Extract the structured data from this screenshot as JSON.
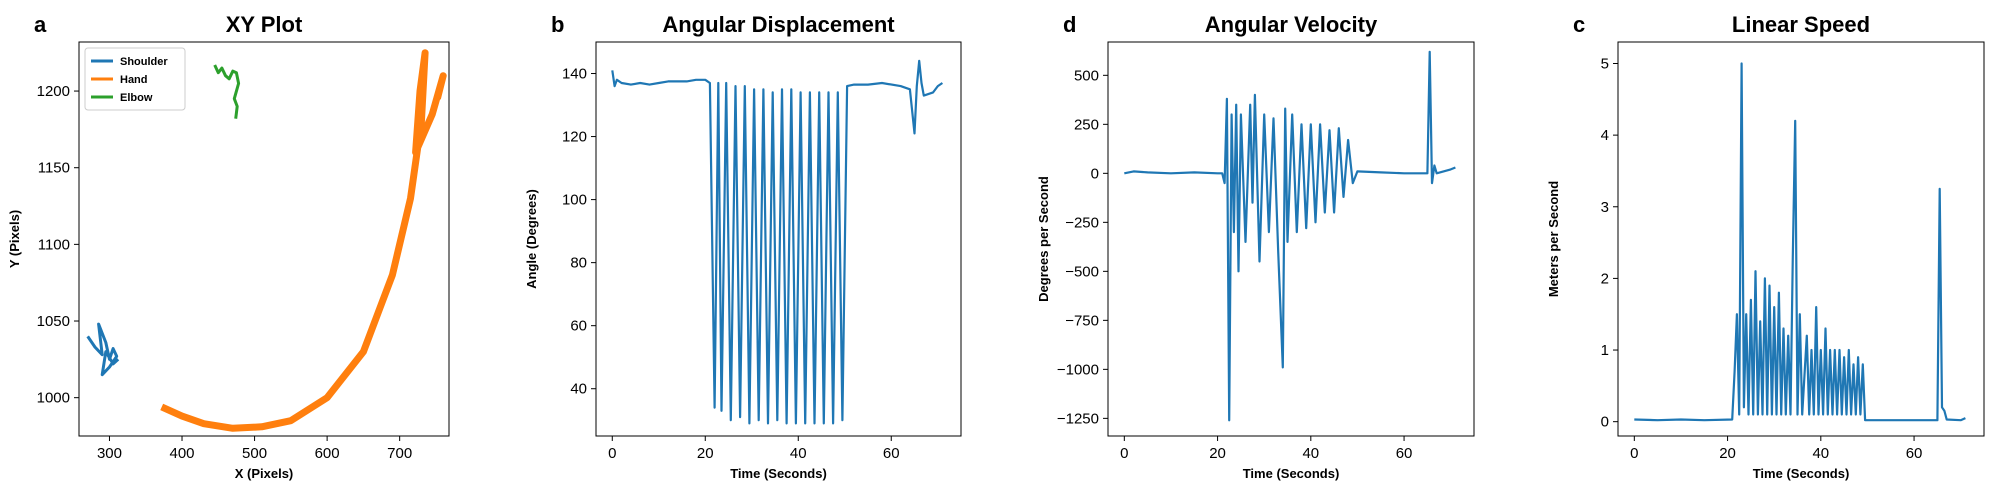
{
  "chart_data": [
    {
      "type": "xy",
      "panel_label": "a",
      "title": "XY Plot",
      "xlabel": "X (Pixels)",
      "ylabel": "Y (Pixels)",
      "xlim": [
        258,
        768
      ],
      "xticks": [
        300,
        400,
        500,
        600,
        700
      ],
      "ylim": [
        975,
        1232
      ],
      "yticks": [
        1000,
        1050,
        1100,
        1150,
        1200
      ],
      "legend": "upper left",
      "series": [
        {
          "name": "Shoulder",
          "color": "#1f77b4",
          "x": [
            270,
            280,
            290,
            285,
            295,
            300,
            305,
            310,
            300,
            290,
            295,
            305,
            312
          ],
          "y": [
            1040,
            1033,
            1028,
            1048,
            1036,
            1025,
            1032,
            1027,
            1020,
            1015,
            1030,
            1022,
            1025
          ]
        },
        {
          "name": "Hand",
          "color": "#ff7f0e",
          "x": [
            372,
            400,
            430,
            470,
            510,
            550,
            600,
            650,
            690,
            715,
            730,
            735,
            728,
            722,
            745,
            760,
            752
          ],
          "y": [
            994,
            988,
            983,
            980,
            981,
            985,
            1000,
            1030,
            1080,
            1130,
            1180,
            1225,
            1200,
            1160,
            1185,
            1210,
            1195
          ]
        },
        {
          "name": "Elbow",
          "color": "#2ca02c",
          "x": [
            445,
            450,
            455,
            460,
            465,
            470,
            475,
            478,
            472,
            476,
            474
          ],
          "y": [
            1217,
            1212,
            1215,
            1210,
            1208,
            1213,
            1212,
            1205,
            1195,
            1190,
            1182
          ]
        }
      ]
    },
    {
      "type": "line",
      "panel_label": "b",
      "title": "Angular Displacement",
      "xlabel": "Time (Seconds)",
      "ylabel": "Angle (Degrees)",
      "xlim": [
        -3.5,
        75
      ],
      "xticks": [
        0,
        20,
        40,
        60
      ],
      "ylim": [
        25,
        150
      ],
      "yticks": [
        40,
        60,
        80,
        100,
        120,
        140
      ],
      "color": "#1f77b4",
      "x": [
        0,
        0.5,
        1,
        2,
        4,
        6,
        8,
        10,
        12,
        14,
        16,
        18,
        20,
        21,
        22,
        22.8,
        23.5,
        24.5,
        25.5,
        26.5,
        27.5,
        28.5,
        29.5,
        30.5,
        31.5,
        32.5,
        33.5,
        34.5,
        35.5,
        36.5,
        37.5,
        38.5,
        39.5,
        40.5,
        41.5,
        42.5,
        43.5,
        44.5,
        45.5,
        46.5,
        47.5,
        48.5,
        49.5,
        50.5,
        52,
        55,
        58,
        62,
        64,
        65,
        65.5,
        66,
        66.5,
        67,
        69,
        70,
        71
      ],
      "values": [
        141,
        136,
        138,
        137,
        136.5,
        137,
        136.5,
        137,
        137.5,
        137.5,
        137.5,
        138,
        138,
        137,
        34,
        137,
        33,
        137,
        30,
        136,
        31,
        136,
        29,
        135,
        30,
        135,
        29,
        134,
        30,
        135,
        29,
        135,
        29,
        134,
        29,
        134,
        29,
        134,
        29,
        134,
        29,
        134,
        30,
        136,
        136.5,
        136.5,
        137,
        136,
        135,
        121,
        136,
        144,
        137,
        133,
        134,
        136,
        137
      ]
    },
    {
      "type": "line",
      "panel_label": "d",
      "title": "Angular Velocity",
      "xlabel": "Time (Seconds)",
      "ylabel": "Degrees per Second",
      "xlim": [
        -3.5,
        75
      ],
      "xticks": [
        0,
        20,
        40,
        60
      ],
      "ylim": [
        -1340,
        670
      ],
      "yticks": [
        {
          "value": -1250,
          "label": "−1250"
        },
        {
          "value": -1000,
          "label": "−1000"
        },
        {
          "value": -750,
          "label": "−750"
        },
        {
          "value": -500,
          "label": "−500"
        },
        {
          "value": -250,
          "label": "−250"
        },
        0,
        250,
        500
      ],
      "color": "#1f77b4",
      "x": [
        0,
        2,
        5,
        10,
        15,
        20,
        21,
        21.5,
        22,
        22.5,
        23,
        23.5,
        24,
        24.5,
        25,
        26,
        27,
        27.5,
        28,
        29,
        30,
        31,
        32,
        33,
        34,
        34.5,
        35,
        36,
        37,
        38,
        39,
        40,
        41,
        42,
        43,
        44,
        45,
        46,
        47,
        48,
        49,
        50,
        55,
        60,
        65,
        65.5,
        66,
        66.5,
        67,
        70,
        71
      ],
      "values": [
        0,
        10,
        5,
        0,
        5,
        0,
        0,
        -50,
        380,
        -1260,
        300,
        -300,
        350,
        -500,
        300,
        -350,
        350,
        -150,
        400,
        -450,
        300,
        -300,
        280,
        -400,
        -990,
        330,
        -350,
        300,
        -300,
        250,
        -280,
        250,
        -250,
        250,
        -200,
        220,
        -200,
        230,
        -120,
        170,
        -50,
        10,
        5,
        0,
        0,
        620,
        -50,
        40,
        0,
        20,
        30
      ]
    },
    {
      "type": "line",
      "panel_label": "c",
      "title": "Linear Speed",
      "xlabel": "Time (Seconds)",
      "ylabel": "Meters per Second",
      "xlim": [
        -3.5,
        75
      ],
      "xticks": [
        0,
        20,
        40,
        60
      ],
      "ylim": [
        -0.2,
        5.3
      ],
      "yticks": [
        0,
        1,
        2,
        3,
        4,
        5
      ],
      "color": "#1f77b4",
      "x": [
        0,
        5,
        10,
        15,
        21,
        21.5,
        22,
        22.5,
        23,
        23.5,
        24,
        24.5,
        25,
        25.5,
        26,
        26.5,
        27,
        27.5,
        28,
        28.5,
        29,
        29.5,
        30,
        30.5,
        31,
        31.5,
        32,
        32.5,
        33,
        33.5,
        34,
        34.5,
        35,
        35.5,
        36,
        37,
        37.5,
        38,
        38.5,
        39,
        39.5,
        40,
        40.5,
        41,
        41.5,
        42,
        42.5,
        43,
        43.5,
        44,
        44.5,
        45,
        45.5,
        46,
        46.5,
        47,
        47.5,
        48,
        48.5,
        49,
        49.5,
        55,
        65,
        65.5,
        66,
        66.5,
        67,
        70,
        71
      ],
      "values": [
        0.03,
        0.02,
        0.03,
        0.02,
        0.03,
        0.7,
        1.5,
        0.1,
        5.0,
        0.2,
        1.5,
        0.1,
        1.7,
        0.1,
        2.1,
        0.1,
        1.4,
        0.1,
        2.0,
        0.1,
        1.9,
        0.1,
        1.6,
        0.1,
        1.8,
        0.1,
        1.3,
        0.1,
        1.2,
        0.1,
        2.3,
        4.2,
        0.1,
        1.5,
        0.1,
        1.2,
        0.1,
        1.0,
        0.1,
        1.6,
        0.1,
        1.0,
        0.1,
        1.3,
        0.1,
        1.0,
        0.1,
        1.0,
        0.1,
        1.0,
        0.1,
        0.9,
        0.1,
        1.0,
        0.1,
        0.8,
        0.1,
        0.9,
        0.1,
        0.8,
        0.02,
        0.02,
        0.02,
        3.25,
        0.2,
        0.15,
        0.03,
        0.02,
        0.05
      ]
    }
  ]
}
